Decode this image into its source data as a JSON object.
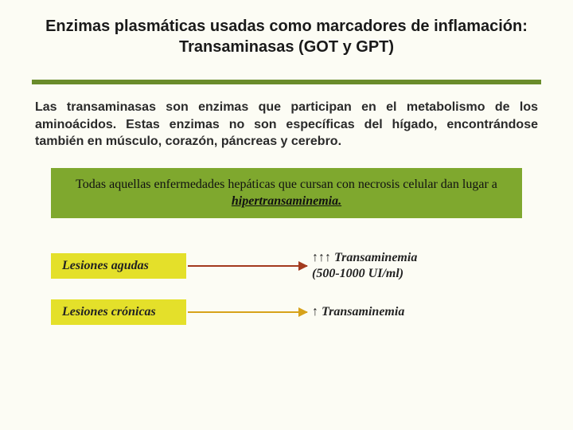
{
  "title": "Enzimas plasmáticas usadas como marcadores de inflamación: Transaminasas (GOT y GPT)",
  "paragraph": "Las transaminasas son enzimas que participan en el metabolismo de los aminoácidos. Estas enzimas no son específicas del hígado, encontrándose también en músculo, corazón, páncreas y cerebro.",
  "callout": {
    "prefix": "Todas aquellas enfermedades hepáticas que cursan con necrosis celular dan lugar a ",
    "emphasis": "hipertransaminemia."
  },
  "rows": [
    {
      "tag": "Lesiones agudas",
      "arrow_color": "red",
      "result_arrows": "↑↑↑",
      "result_text": " Transaminemia",
      "result_sub": "(500-1000 UI/ml)"
    },
    {
      "tag": "Lesiones crónicas",
      "arrow_color": "orange",
      "result_arrows": "↑",
      "result_text": " Transaminemia",
      "result_sub": ""
    }
  ],
  "colors": {
    "background": "#fcfcf4",
    "bar": "#6a8c2b",
    "callout_bg": "#7fa82e",
    "tag_bg": "#e4e02a",
    "arrow_red": "#a33a1e",
    "arrow_orange": "#d7a21a"
  }
}
